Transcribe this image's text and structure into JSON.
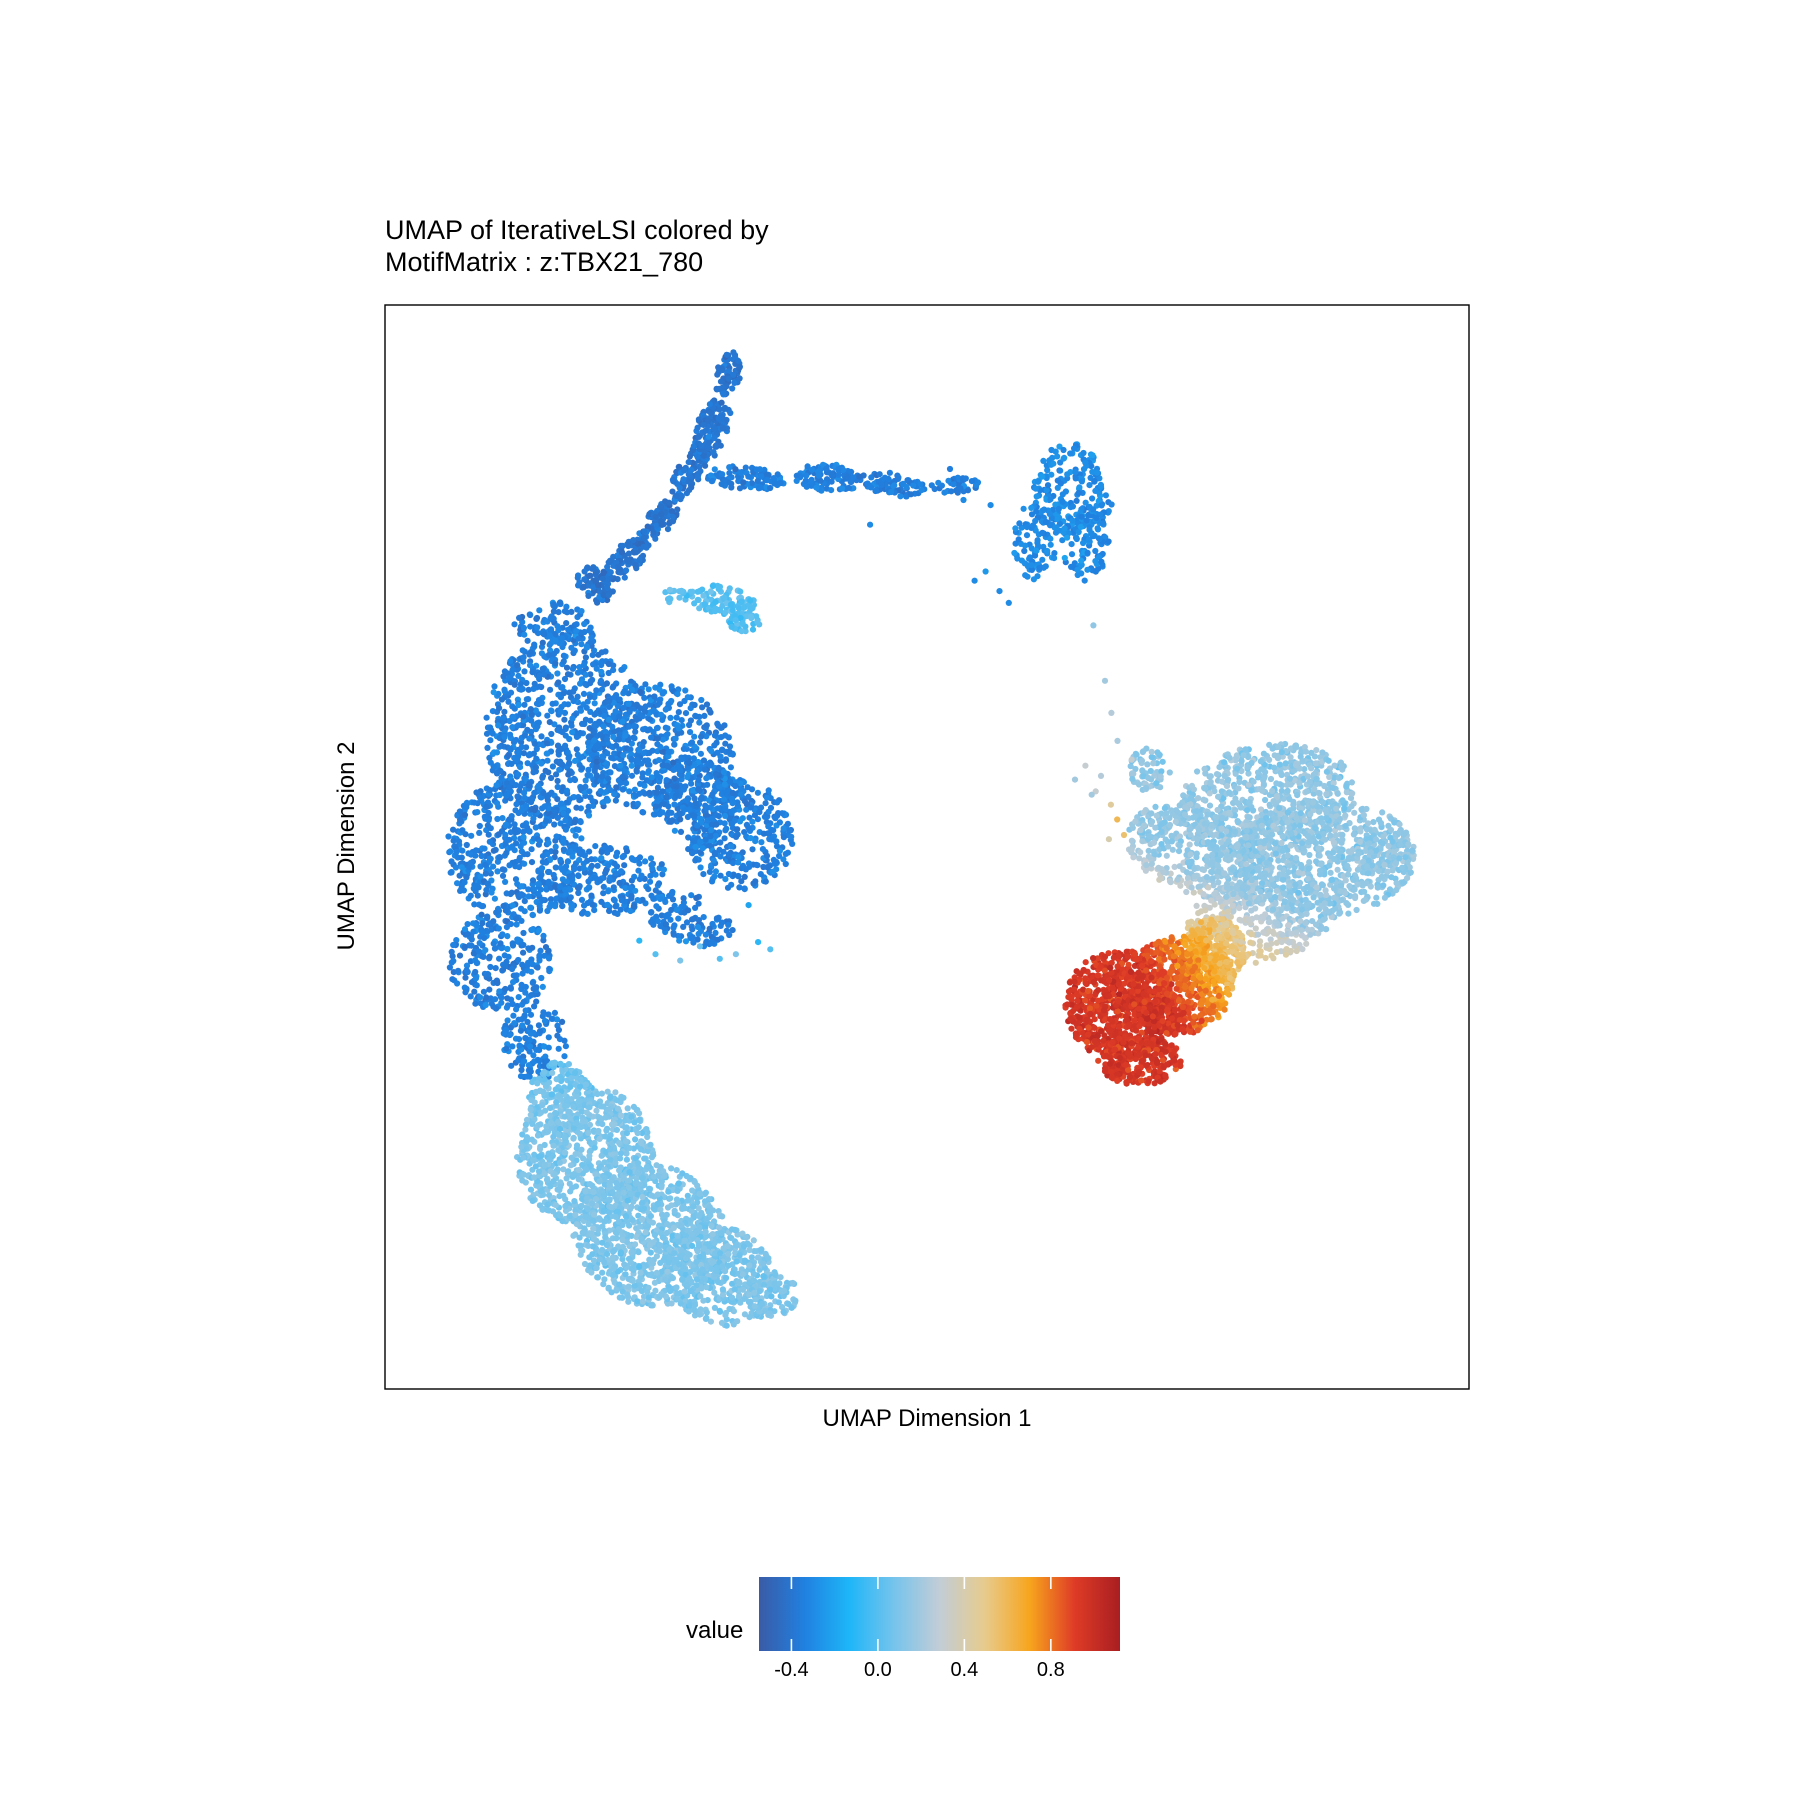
{
  "chart_data": {
    "type": "scatter",
    "title": [
      "UMAP of IterativeLSI colored by",
      "MotifMatrix : z:TBX21_780"
    ],
    "xlabel": "UMAP Dimension 1",
    "ylabel": "UMAP Dimension 2",
    "grid": false,
    "axis_ticks": false,
    "legend": {
      "position": "bottom",
      "title": "value",
      "type": "colorbar",
      "range": [
        -0.55,
        1.12
      ],
      "ticks": [
        "-0.4",
        "0.0",
        "0.4",
        "0.8"
      ],
      "tick_values": [
        -0.4,
        0.0,
        0.4,
        0.8
      ],
      "palette": [
        "#3A5BA6",
        "#2080E0",
        "#1EB6F8",
        "#76C4EC",
        "#C2CDD6",
        "#E7CB8D",
        "#F7A51D",
        "#DE3B26",
        "#A91E22"
      ]
    },
    "clusters": [
      {
        "id": "upper-stem",
        "value": -0.4
      },
      {
        "id": "upper-bridge",
        "value": -0.35
      },
      {
        "id": "upper-right-blob",
        "value": -0.3
      },
      {
        "id": "small-island",
        "value": 0.0
      },
      {
        "id": "left-large-cluster",
        "value": -0.35
      },
      {
        "id": "bottom-left-cluster",
        "value": 0.1
      },
      {
        "id": "right-cluster-upper",
        "value": 0.15
      },
      {
        "id": "right-cluster-lower",
        "value": 0.95
      }
    ]
  }
}
